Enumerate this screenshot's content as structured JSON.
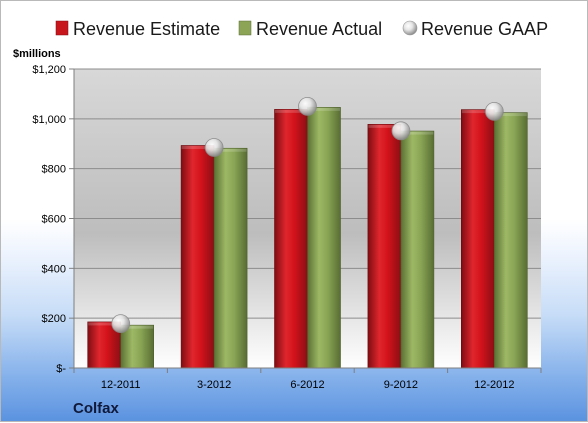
{
  "chart_data": {
    "type": "bar",
    "unit_label": "$millions",
    "company": "Colfax",
    "categories": [
      "12-2011",
      "3-2012",
      "6-2012",
      "9-2012",
      "12-2012"
    ],
    "series": [
      {
        "name": "Revenue Estimate",
        "kind": "bar",
        "color": "#c8161d",
        "values": [
          185,
          893,
          1038,
          978,
          1037
        ]
      },
      {
        "name": "Revenue Actual",
        "kind": "bar",
        "color": "#8ba456",
        "values": [
          172,
          882,
          1046,
          951,
          1025
        ]
      },
      {
        "name": "Revenue GAAP",
        "kind": "marker",
        "color": "#c8c8c8",
        "values": [
          178,
          885,
          1050,
          952,
          1030
        ]
      }
    ],
    "y_ticks": [
      "$-",
      "$200",
      "$400",
      "$600",
      "$800",
      "$1,000",
      "$1,200"
    ],
    "ylim": [
      0,
      1200
    ],
    "grid": true,
    "legend_position": "top"
  }
}
